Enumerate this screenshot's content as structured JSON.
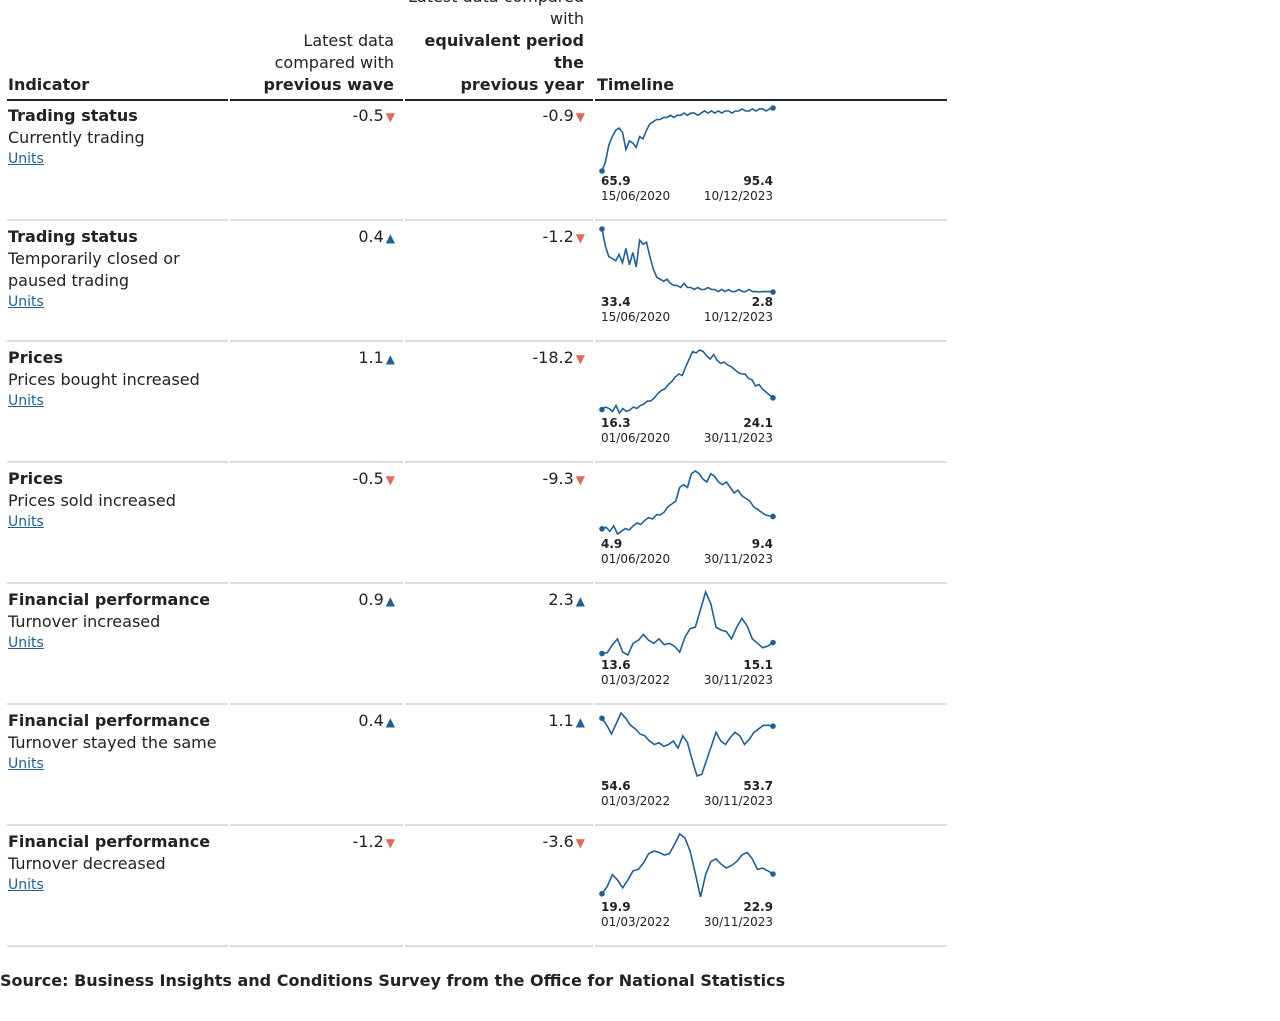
{
  "header": {
    "indicator": "Indicator",
    "wave_line1": "Latest data",
    "wave_line2": "compared with",
    "wave_line3": "previous wave",
    "year_line1": "Latest data compared",
    "year_line2": "with",
    "year_line3": "equivalent period the",
    "year_line4": "previous year",
    "timeline": "Timeline"
  },
  "colors": {
    "line": "#206095",
    "up": "#206095",
    "down": "#e0695b"
  },
  "link_label": "Units",
  "rows": [
    {
      "title": "Trading status",
      "subtitle": "Currently trading",
      "wave": "-0.5",
      "wave_dir": "down",
      "year": "-0.9",
      "year_dir": "down",
      "start_value": "65.9",
      "end_value": "95.4",
      "start_date": "15/06/2020",
      "end_date": "10/12/2023"
    },
    {
      "title": "Trading status",
      "subtitle": "Temporarily closed or paused trading",
      "wave": "0.4",
      "wave_dir": "up",
      "year": "-1.2",
      "year_dir": "down",
      "start_value": "33.4",
      "end_value": "2.8",
      "start_date": "15/06/2020",
      "end_date": "10/12/2023"
    },
    {
      "title": "Prices",
      "subtitle": "Prices bought increased",
      "wave": "1.1",
      "wave_dir": "up",
      "year": "-18.2",
      "year_dir": "down",
      "start_value": "16.3",
      "end_value": "24.1",
      "start_date": "01/06/2020",
      "end_date": "30/11/2023"
    },
    {
      "title": "Prices",
      "subtitle": "Prices sold increased",
      "wave": "-0.5",
      "wave_dir": "down",
      "year": "-9.3",
      "year_dir": "down",
      "start_value": "4.9",
      "end_value": "9.4",
      "start_date": "01/06/2020",
      "end_date": "30/11/2023"
    },
    {
      "title": "Financial performance",
      "subtitle": "Turnover increased",
      "wave": "0.9",
      "wave_dir": "up",
      "year": "2.3",
      "year_dir": "up",
      "start_value": "13.6",
      "end_value": "15.1",
      "start_date": "01/03/2022",
      "end_date": "30/11/2023"
    },
    {
      "title": "Financial performance",
      "subtitle": "Turnover stayed the same",
      "wave": "0.4",
      "wave_dir": "up",
      "year": "1.1",
      "year_dir": "up",
      "start_value": "54.6",
      "end_value": "53.7",
      "start_date": "01/03/2022",
      "end_date": "30/11/2023"
    },
    {
      "title": "Financial performance",
      "subtitle": "Turnover decreased",
      "wave": "-1.2",
      "wave_dir": "down",
      "year": "-3.6",
      "year_dir": "down",
      "start_value": "19.9",
      "end_value": "22.9",
      "start_date": "01/03/2022",
      "end_date": "30/11/2023"
    }
  ],
  "chart_data": [
    {
      "type": "line",
      "series": [
        {
          "values": [
            65.9,
            70,
            78,
            82,
            85,
            86,
            84,
            76,
            80,
            79,
            77,
            82,
            81,
            85,
            88,
            89,
            90,
            90,
            91,
            91,
            92,
            91,
            92,
            92,
            93,
            92,
            93,
            93,
            92,
            93,
            94,
            93,
            94,
            93,
            94,
            93,
            94,
            94,
            93,
            94,
            94,
            95,
            94,
            94,
            95,
            94,
            95,
            95,
            94,
            95,
            95.4
          ]
        }
      ]
    },
    {
      "type": "line",
      "series": [
        {
          "values": [
            33.4,
            25,
            20,
            19,
            18,
            21,
            17,
            24,
            16,
            22,
            15,
            28,
            26,
            27,
            20,
            14,
            10,
            9,
            8,
            9,
            7,
            6,
            6,
            5,
            7,
            5,
            5,
            4,
            5,
            4,
            4,
            5,
            4,
            4,
            3,
            4,
            3,
            4,
            3,
            3,
            4,
            3,
            3,
            4,
            3,
            3,
            2.8,
            3,
            3,
            3,
            2.8
          ]
        }
      ]
    },
    {
      "type": "line",
      "series": [
        {
          "values": [
            16.3,
            18,
            17,
            15,
            19,
            14,
            17,
            15,
            16,
            18,
            17,
            19,
            20,
            22,
            22,
            24,
            27,
            29,
            30,
            33,
            35,
            38,
            40,
            39,
            45,
            50,
            55,
            54,
            56,
            55,
            52,
            50,
            53,
            49,
            47,
            48,
            46,
            45,
            43,
            41,
            40,
            40,
            37,
            36,
            32,
            33,
            30,
            28,
            26,
            24.1
          ]
        }
      ]
    },
    {
      "type": "line",
      "series": [
        {
          "values": [
            4.9,
            5.5,
            4,
            6,
            3,
            4,
            5,
            4.5,
            6,
            7,
            6.5,
            8,
            9,
            8.5,
            10,
            10,
            11,
            13,
            14,
            15,
            20,
            21,
            20,
            25,
            26,
            25,
            23,
            22,
            25,
            24,
            22,
            21,
            22,
            20,
            18,
            19,
            17,
            16,
            15,
            13,
            12,
            11,
            10,
            9.6,
            9.4
          ]
        }
      ]
    },
    {
      "type": "line",
      "series": [
        {
          "values": [
            13.6,
            13.7,
            14.8,
            15.6,
            13.8,
            13.4,
            15.0,
            15.4,
            16.2,
            15.4,
            15.0,
            15.6,
            14.8,
            15.0,
            14.6,
            13.8,
            15.8,
            17.0,
            17.2,
            19.6,
            22.0,
            20.4,
            17.2,
            16.8,
            16.6,
            15.6,
            17.2,
            18.4,
            17.4,
            15.6,
            15.0,
            14.4,
            14.6,
            15.1
          ]
        }
      ]
    },
    {
      "type": "line",
      "series": [
        {
          "values": [
            54.6,
            53.8,
            52.8,
            54.0,
            55.2,
            54.6,
            53.8,
            53.4,
            52.8,
            52.6,
            52.0,
            51.6,
            51.8,
            51.4,
            51.6,
            52.0,
            51.2,
            52.6,
            51.8,
            49.8,
            48.0,
            48.2,
            49.8,
            51.4,
            53.0,
            52.0,
            51.6,
            52.4,
            53.0,
            52.6,
            51.6,
            52.2,
            53.0,
            53.4,
            53.8,
            53.8,
            53.7
          ]
        }
      ]
    },
    {
      "type": "line",
      "series": [
        {
          "values": [
            19.9,
            21.0,
            22.8,
            22.0,
            20.8,
            22.0,
            23.4,
            23.6,
            24.6,
            26.0,
            26.4,
            26.2,
            25.8,
            26.0,
            27.4,
            29.0,
            28.4,
            26.4,
            23.0,
            19.4,
            22.8,
            24.8,
            25.2,
            24.4,
            23.8,
            24.2,
            24.8,
            25.8,
            26.2,
            25.2,
            23.6,
            23.8,
            23.4,
            22.9
          ]
        }
      ]
    }
  ],
  "footer": {
    "source": "Source: Business Insights and Conditions Survey from the Office for National Statistics"
  }
}
